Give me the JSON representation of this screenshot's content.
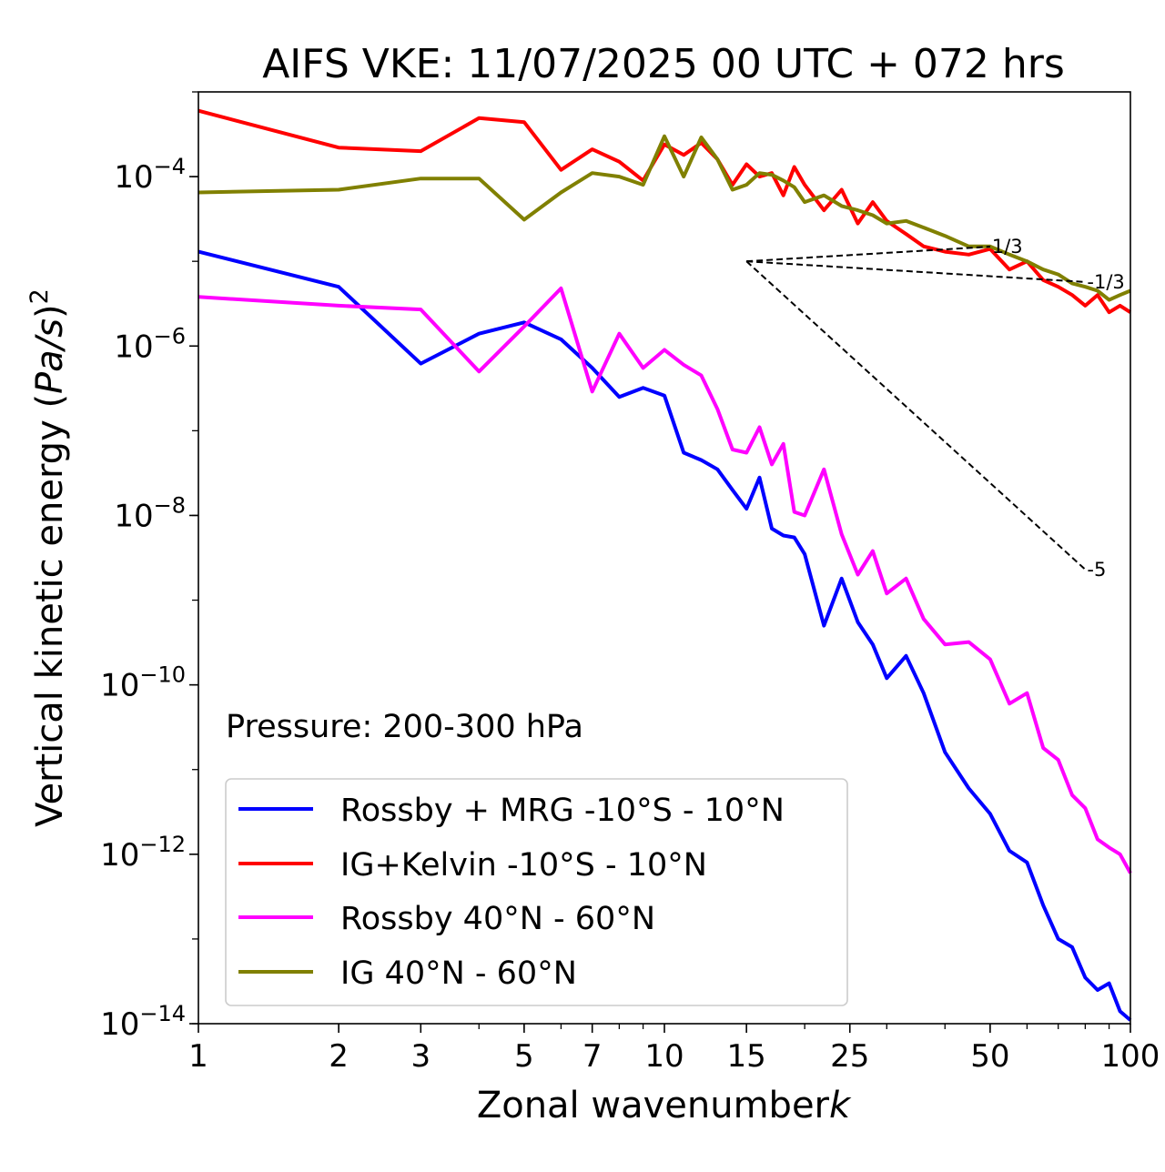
{
  "chart_data": {
    "type": "line",
    "title": "AIFS VKE: 11/07/2025 00 UTC + 072 hrs",
    "xlabel": "Zonal wavenumber",
    "xlabel_italic": "k",
    "ylabel_prefix": "Vertical kinetic energy (",
    "ylabel_italic": "Pa/s",
    "ylabel_suffix": ")",
    "ylabel_sup": "2",
    "x_scale": "log",
    "y_scale": "log",
    "xlim": [
      1,
      100
    ],
    "ylim": [
      1e-14,
      0.001
    ],
    "x_ticks": [
      1,
      2,
      3,
      5,
      7,
      10,
      15,
      25,
      50,
      100
    ],
    "x_tick_labels": [
      "1",
      "2",
      "3",
      "5",
      "7",
      "10",
      "15",
      "25",
      "50",
      "100"
    ],
    "y_ticks": [
      {
        "value": 0.0001,
        "base": "10",
        "exp": "−4"
      },
      {
        "value": 1e-06,
        "base": "10",
        "exp": "−6"
      },
      {
        "value": 1e-08,
        "base": "10",
        "exp": "−8"
      },
      {
        "value": 1e-10,
        "base": "10",
        "exp": "−10"
      },
      {
        "value": 1e-12,
        "base": "10",
        "exp": "−12"
      },
      {
        "value": 1e-14,
        "base": "10",
        "exp": "−14"
      }
    ],
    "annotation": "Pressure: 200-300 hPa",
    "legend_position": "lower-left",
    "grid": false,
    "series": [
      {
        "name": "Rossby + MRG -10°S - 10°N",
        "color": "#0000ff",
        "x": [
          1,
          2,
          3,
          4,
          5,
          6,
          7,
          8,
          9,
          10,
          11,
          12,
          13,
          14,
          15,
          16,
          17,
          18,
          19,
          20,
          22,
          24,
          26,
          28,
          30,
          33,
          36,
          40,
          45,
          50,
          55,
          60,
          65,
          70,
          75,
          80,
          85,
          90,
          95,
          100
        ],
        "y": [
          1.3e-05,
          5e-06,
          6.2e-07,
          1.4e-06,
          1.9e-06,
          1.2e-06,
          5.5e-07,
          2.5e-07,
          3.2e-07,
          2.6e-07,
          5.5e-08,
          4.5e-08,
          3.5e-08,
          2e-08,
          1.2e-08,
          2.8e-08,
          7e-09,
          5.8e-09,
          5.5e-09,
          3.5e-09,
          5e-10,
          1.8e-09,
          5.5e-10,
          3e-10,
          1.2e-10,
          2.2e-10,
          8e-11,
          1.6e-11,
          6e-12,
          3e-12,
          1.1e-12,
          8e-13,
          2.5e-13,
          1e-13,
          8e-14,
          3.5e-14,
          2.5e-14,
          3e-14,
          1.4e-14,
          1.1e-14
        ]
      },
      {
        "name": "IG+Kelvin -10°S - 10°N",
        "color": "#ff0000",
        "x": [
          1,
          2,
          3,
          4,
          5,
          6,
          7,
          8,
          9,
          10,
          11,
          12,
          13,
          14,
          15,
          16,
          17,
          18,
          19,
          20,
          22,
          24,
          26,
          28,
          30,
          33,
          36,
          40,
          45,
          50,
          55,
          60,
          65,
          70,
          75,
          80,
          85,
          90,
          95,
          100
        ],
        "y": [
          0.0006,
          0.00022,
          0.0002,
          0.00049,
          0.00044,
          0.00012,
          0.00021,
          0.00015,
          9e-05,
          0.00024,
          0.00018,
          0.00025,
          0.00016,
          8e-05,
          0.00014,
          0.0001,
          0.00011,
          6e-05,
          0.00013,
          8e-05,
          4e-05,
          7e-05,
          2.8e-05,
          5e-05,
          3e-05,
          2.1e-05,
          1.5e-05,
          1.3e-05,
          1.2e-05,
          1.4e-05,
          8e-06,
          1e-05,
          6e-06,
          5e-06,
          4e-06,
          3e-06,
          4e-06,
          2.5e-06,
          3e-06,
          2.5e-06
        ]
      },
      {
        "name": "Rossby 40°N - 60°N",
        "color": "#ff00ff",
        "x": [
          1,
          2,
          3,
          4,
          5,
          6,
          7,
          8,
          9,
          10,
          11,
          12,
          13,
          14,
          15,
          16,
          17,
          18,
          19,
          20,
          22,
          24,
          26,
          28,
          30,
          33,
          36,
          40,
          45,
          50,
          55,
          60,
          65,
          70,
          75,
          80,
          85,
          90,
          95,
          100
        ],
        "y": [
          3.8e-06,
          3e-06,
          2.7e-06,
          5e-07,
          1.7e-06,
          4.8e-06,
          2.9e-07,
          1.4e-06,
          5.5e-07,
          9e-07,
          6e-07,
          4.5e-07,
          1.8e-07,
          6e-08,
          5.5e-08,
          1.1e-07,
          4e-08,
          7e-08,
          1.1e-08,
          1e-08,
          3.5e-08,
          6e-09,
          2e-09,
          3.8e-09,
          1.2e-09,
          1.8e-09,
          6e-10,
          3e-10,
          3.2e-10,
          2e-10,
          6e-11,
          8e-11,
          1.8e-11,
          1.3e-11,
          5e-12,
          3.5e-12,
          1.5e-12,
          1.2e-12,
          1e-12,
          6e-13
        ]
      },
      {
        "name": "IG 40°N - 60°N",
        "color": "#808000",
        "x": [
          1,
          2,
          3,
          4,
          5,
          6,
          7,
          8,
          9,
          10,
          11,
          12,
          13,
          14,
          15,
          16,
          17,
          18,
          19,
          20,
          22,
          24,
          26,
          28,
          30,
          33,
          36,
          40,
          45,
          50,
          55,
          60,
          65,
          70,
          75,
          80,
          85,
          90,
          95,
          100
        ],
        "y": [
          6.5e-05,
          7e-05,
          9.5e-05,
          9.5e-05,
          3.1e-05,
          6.5e-05,
          0.00011,
          0.0001,
          8e-05,
          0.0003,
          0.0001,
          0.00029,
          0.00016,
          7e-05,
          8e-05,
          0.00011,
          0.000105,
          9e-05,
          7.5e-05,
          5e-05,
          6e-05,
          4.5e-05,
          4e-05,
          3.5e-05,
          2.8e-05,
          3e-05,
          2.5e-05,
          2e-05,
          1.5e-05,
          1.5e-05,
          1.2e-05,
          1e-05,
          8e-06,
          7e-06,
          5.5e-06,
          5e-06,
          4.5e-06,
          3.5e-06,
          4e-06,
          4.5e-06
        ]
      }
    ],
    "reference_lines": [
      {
        "label": "1/3",
        "x": [
          15,
          50
        ],
        "y": [
          1e-05,
          1.49e-05
        ]
      },
      {
        "label": "-1/3",
        "x": [
          15,
          80
        ],
        "y": [
          1e-05,
          5.7e-06
        ]
      },
      {
        "label": "-5",
        "x": [
          15,
          80
        ],
        "y": [
          1e-05,
          2.3e-09
        ]
      }
    ]
  }
}
